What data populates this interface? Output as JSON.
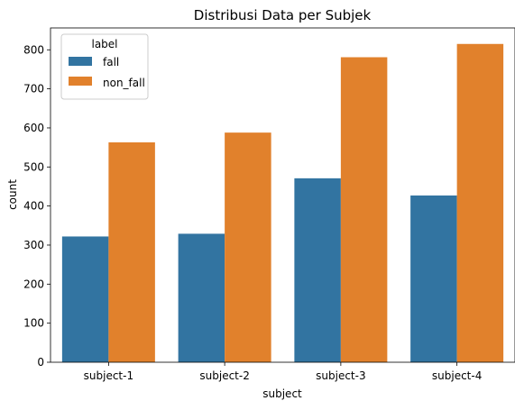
{
  "chart_data": {
    "type": "bar",
    "title": "Distribusi Data per Subjek",
    "xlabel": "subject",
    "ylabel": "count",
    "categories": [
      "subject-1",
      "subject-2",
      "subject-3",
      "subject-4"
    ],
    "series": [
      {
        "name": "fall",
        "color": "#3274a1",
        "values": [
          322,
          329,
          471,
          427
        ]
      },
      {
        "name": "non_fall",
        "color": "#e1812c",
        "values": [
          563,
          588,
          781,
          815
        ]
      }
    ],
    "ylim": [
      0,
      856
    ],
    "yticks": [
      0,
      100,
      200,
      300,
      400,
      500,
      600,
      700,
      800
    ],
    "grid": false,
    "legend": {
      "title": "label",
      "placement": "top-left"
    }
  }
}
